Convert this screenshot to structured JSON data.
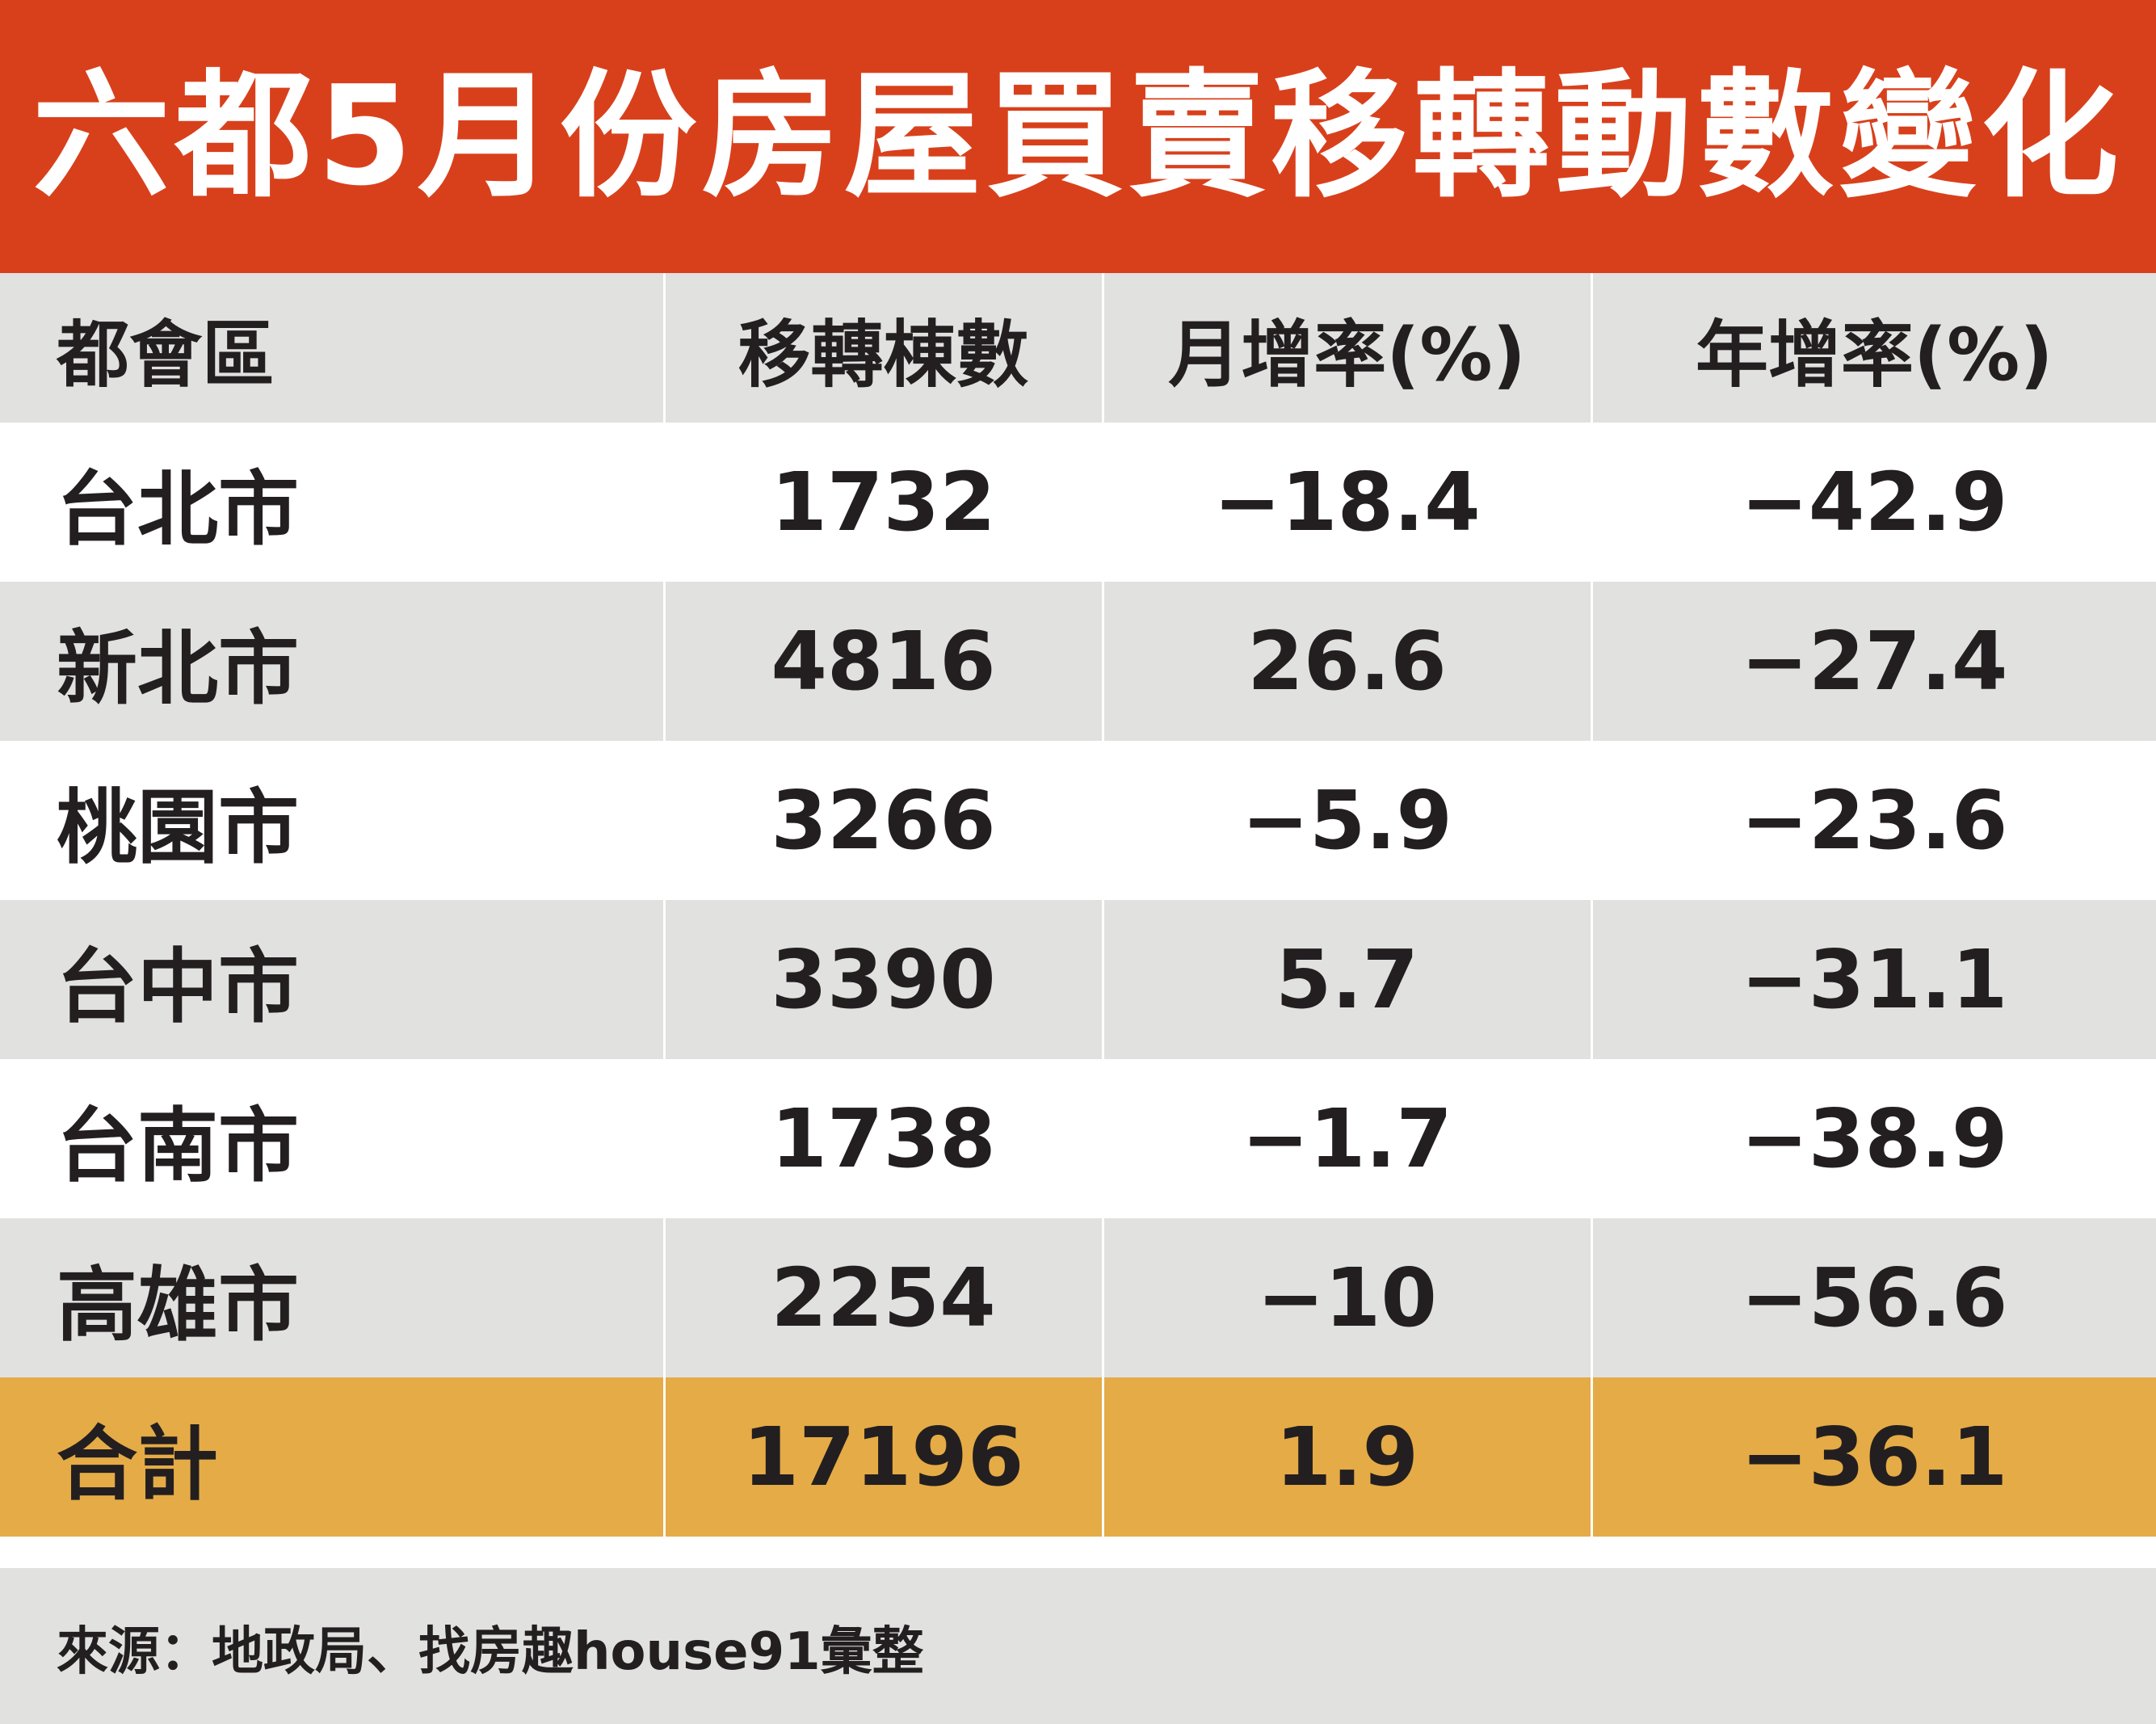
{
  "title": "六都5月份房屋買賣移轉動數變化",
  "colors": {
    "title_bg": "#d8401c",
    "stripe": "#e1e1e0",
    "total_row": "#e5ab46",
    "text": "#231f20"
  },
  "chart_data": {
    "type": "table",
    "title": "六都5月份房屋買賣移轉動數變化",
    "columns": [
      "都會區",
      "移轉棟數",
      "月增率(%)",
      "年增率(%)"
    ],
    "rows": [
      [
        "台北市",
        "1732",
        "−18.4",
        "−42.9"
      ],
      [
        "新北市",
        "4816",
        "26.6",
        "−27.4"
      ],
      [
        "桃園市",
        "3266",
        "−5.9",
        "−23.6"
      ],
      [
        "台中市",
        "3390",
        "5.7",
        "−31.1"
      ],
      [
        "台南市",
        "1738",
        "−1.7",
        "−38.9"
      ],
      [
        "高雄市",
        "2254",
        "−10",
        "−56.6"
      ],
      [
        "合計",
        "17196",
        "1.9",
        "−36.1"
      ]
    ],
    "source": "來源：地政局、找房趣house91彙整"
  }
}
